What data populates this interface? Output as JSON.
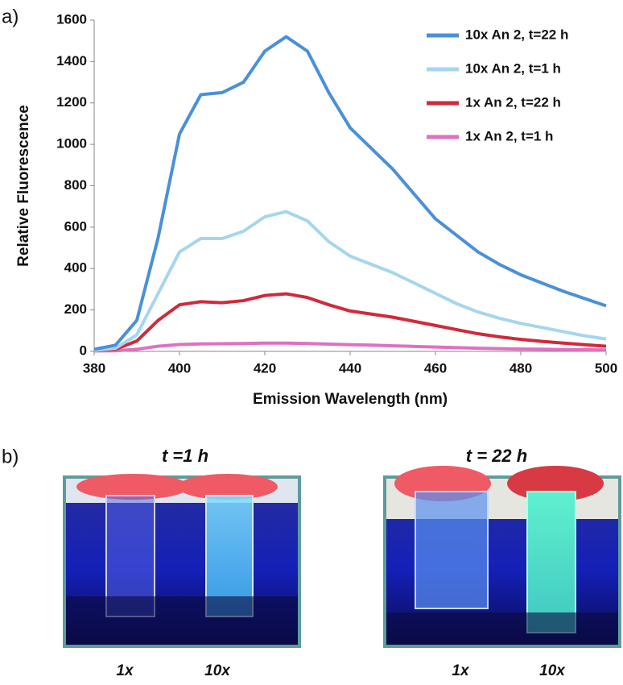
{
  "chart_data": {
    "type": "line",
    "xlabel": "Emission Wavelength (nm)",
    "ylabel": "Relative Fluorescence",
    "x": [
      380,
      385,
      390,
      395,
      400,
      405,
      410,
      415,
      420,
      425,
      430,
      435,
      440,
      445,
      450,
      455,
      460,
      465,
      470,
      475,
      480,
      485,
      490,
      495,
      500
    ],
    "series": [
      {
        "name": "10x An 2, t=22 h",
        "color": "#4a90d9",
        "values": [
          10,
          30,
          150,
          550,
          1050,
          1240,
          1250,
          1300,
          1450,
          1520,
          1450,
          1250,
          1080,
          980,
          880,
          760,
          640,
          560,
          480,
          420,
          370,
          330,
          290,
          255,
          220
        ]
      },
      {
        "name": "10x An 2, t=1 h",
        "color": "#a6d6ef",
        "values": [
          5,
          15,
          80,
          280,
          480,
          545,
          545,
          580,
          650,
          675,
          630,
          530,
          460,
          420,
          380,
          330,
          280,
          230,
          190,
          160,
          135,
          115,
          95,
          75,
          60
        ]
      },
      {
        "name": "1x An 2, t=22 h",
        "color": "#d02a3a",
        "values": [
          5,
          10,
          50,
          150,
          225,
          240,
          235,
          245,
          270,
          278,
          260,
          225,
          195,
          180,
          165,
          145,
          125,
          105,
          85,
          70,
          58,
          48,
          40,
          32,
          25
        ]
      },
      {
        "name": "1x An 2, t=1 h",
        "color": "#e070c0",
        "values": [
          2,
          3,
          10,
          25,
          33,
          36,
          37,
          38,
          40,
          40,
          38,
          35,
          32,
          30,
          27,
          24,
          21,
          18,
          15,
          13,
          11,
          10,
          9,
          8,
          7
        ]
      }
    ],
    "xlim": [
      380,
      500
    ],
    "xticks": [
      380,
      400,
      420,
      440,
      460,
      480,
      500
    ],
    "ylim": [
      0,
      1600
    ],
    "yticks": [
      0,
      200,
      400,
      600,
      800,
      1000,
      1200,
      1400,
      1600
    ],
    "grid": false,
    "legend": "upper right"
  },
  "panel_labels": [
    "a)",
    "b)"
  ],
  "photos": [
    {
      "title": "t =1 h",
      "labels": [
        "1x",
        "10x"
      ]
    },
    {
      "title": "t = 22 h",
      "labels": [
        "1x",
        "10x"
      ]
    }
  ]
}
